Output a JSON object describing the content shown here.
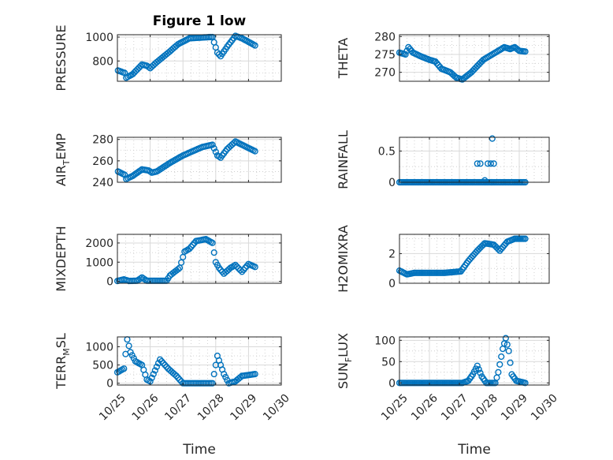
{
  "chart_data": [
    {
      "type": "scatter",
      "id": "pressure",
      "title": "Figure 1 low",
      "ylabel": "PRESSURE",
      "ylim": [
        630,
        1020
      ],
      "yticks": [
        800,
        1000
      ],
      "ytick_labels": [
        "800",
        "1000"
      ],
      "minor_y": [
        700,
        900
      ],
      "xlim": [
        0,
        5
      ],
      "xticks": [
        0,
        1,
        2,
        3,
        4,
        5
      ],
      "xtick_labels": [],
      "xlabel": "",
      "segments": [
        [
          0.02,
          720
        ],
        [
          0.22,
          700
        ],
        [
          0.27,
          660
        ],
        [
          0.47,
          690
        ],
        [
          0.75,
          770
        ],
        [
          0.9,
          760
        ],
        [
          1.0,
          740
        ],
        [
          1.2,
          790
        ],
        [
          1.6,
          880
        ],
        [
          1.85,
          940
        ],
        [
          2.2,
          990
        ],
        [
          2.8,
          1000
        ],
        [
          2.9,
          1000
        ],
        [
          3.05,
          870
        ],
        [
          3.15,
          840
        ],
        [
          3.35,
          920
        ],
        [
          3.6,
          1010
        ],
        [
          3.8,
          990
        ],
        [
          4.0,
          960
        ],
        [
          4.2,
          930
        ]
      ]
    },
    {
      "type": "scatter",
      "id": "theta",
      "title": "",
      "ylabel": "THETA",
      "ylim": [
        267.5,
        280.5
      ],
      "yticks": [
        270,
        275,
        280
      ],
      "ytick_labels": [
        "270",
        "275",
        "280"
      ],
      "minor_y": [
        272.5,
        277.5
      ],
      "xlim": [
        0,
        5
      ],
      "xticks": [
        0,
        1,
        2,
        3,
        4,
        5
      ],
      "xtick_labels": [],
      "xlabel": "",
      "segments": [
        [
          0.0,
          275.5
        ],
        [
          0.2,
          275.0
        ],
        [
          0.3,
          277.0
        ],
        [
          0.45,
          275.5
        ],
        [
          0.7,
          274.5
        ],
        [
          1.0,
          273.5
        ],
        [
          1.2,
          273.0
        ],
        [
          1.4,
          271.0
        ],
        [
          1.7,
          270.0
        ],
        [
          1.9,
          268.5
        ],
        [
          2.1,
          268.0
        ],
        [
          2.4,
          270.0
        ],
        [
          2.8,
          273.5
        ],
        [
          3.2,
          275.5
        ],
        [
          3.5,
          277.0
        ],
        [
          3.7,
          276.5
        ],
        [
          3.85,
          277.0
        ],
        [
          4.0,
          276.0
        ],
        [
          4.2,
          275.8
        ]
      ]
    },
    {
      "type": "scatter",
      "id": "air_temp",
      "title": "",
      "ylabel": "AIR_TEMP",
      "ylim": [
        240,
        282
      ],
      "yticks": [
        240,
        260,
        280
      ],
      "ytick_labels": [
        "240",
        "260",
        "280"
      ],
      "minor_y": [
        250,
        270
      ],
      "xlim": [
        0,
        5
      ],
      "xticks": [
        0,
        1,
        2,
        3,
        4,
        5
      ],
      "xtick_labels": [],
      "xlabel": "",
      "segments": [
        [
          0.02,
          250
        ],
        [
          0.22,
          247
        ],
        [
          0.27,
          243
        ],
        [
          0.47,
          246
        ],
        [
          0.75,
          252
        ],
        [
          0.95,
          251
        ],
        [
          1.05,
          249
        ],
        [
          1.2,
          250
        ],
        [
          1.6,
          258
        ],
        [
          2.0,
          265
        ],
        [
          2.6,
          273
        ],
        [
          2.9,
          275
        ],
        [
          3.05,
          265
        ],
        [
          3.15,
          263
        ],
        [
          3.35,
          271
        ],
        [
          3.6,
          278
        ],
        [
          3.8,
          275
        ],
        [
          4.2,
          269
        ]
      ]
    },
    {
      "type": "scatter",
      "id": "rainfall",
      "title": "",
      "ylabel": "RAINFALL",
      "ylim": [
        0,
        0.72
      ],
      "yticks": [
        0,
        0.5
      ],
      "ytick_labels": [
        "0",
        "0.5"
      ],
      "minor_y": [
        0.25
      ],
      "xlim": [
        0,
        5
      ],
      "xticks": [
        0,
        1,
        2,
        3,
        4,
        5
      ],
      "xtick_labels": [],
      "xlabel": "",
      "segments": [
        [
          0.0,
          0.0
        ],
        [
          3.08,
          0.0
        ],
        [
          3.08,
          0.0
        ],
        [
          4.2,
          0.0
        ]
      ],
      "extra_points": [
        [
          2.6,
          0.3
        ],
        [
          2.7,
          0.3
        ],
        [
          2.95,
          0.3
        ],
        [
          3.05,
          0.3
        ],
        [
          3.15,
          0.3
        ],
        [
          2.85,
          0.03
        ],
        [
          3.1,
          0.7
        ]
      ]
    },
    {
      "type": "scatter",
      "id": "mixdepth",
      "title": "",
      "ylabel": "MIXDEPTH",
      "ylim": [
        -100,
        2450
      ],
      "yticks": [
        0,
        1000,
        2000
      ],
      "ytick_labels": [
        "0",
        "1000",
        "2000"
      ],
      "minor_y": [
        500,
        1500
      ],
      "xlim": [
        0,
        5
      ],
      "xticks": [
        0,
        1,
        2,
        3,
        4,
        5
      ],
      "xtick_labels": [],
      "xlabel": "",
      "segments": [
        [
          0.0,
          20
        ],
        [
          0.2,
          100
        ],
        [
          0.35,
          20
        ],
        [
          0.6,
          30
        ],
        [
          0.75,
          200
        ],
        [
          0.9,
          30
        ],
        [
          1.5,
          30
        ],
        [
          1.6,
          300
        ],
        [
          1.9,
          700
        ],
        [
          2.05,
          1550
        ],
        [
          2.2,
          1700
        ],
        [
          2.4,
          2100
        ],
        [
          2.7,
          2200
        ],
        [
          2.9,
          2000
        ],
        [
          3.0,
          1000
        ],
        [
          3.1,
          700
        ],
        [
          3.25,
          400
        ],
        [
          3.45,
          700
        ],
        [
          3.6,
          850
        ],
        [
          3.8,
          500
        ],
        [
          4.0,
          900
        ],
        [
          4.2,
          750
        ]
      ]
    },
    {
      "type": "scatter",
      "id": "h2omixra",
      "title": "",
      "ylabel": "H2OMIXRA",
      "ylim": [
        0,
        3.3
      ],
      "yticks": [
        0,
        2
      ],
      "ytick_labels": [
        "0",
        "2"
      ],
      "minor_y": [
        1,
        3
      ],
      "xlim": [
        0,
        5
      ],
      "xticks": [
        0,
        1,
        2,
        3,
        4,
        5
      ],
      "xtick_labels": [],
      "xlabel": "",
      "segments": [
        [
          0.0,
          0.85
        ],
        [
          0.25,
          0.6
        ],
        [
          0.5,
          0.7
        ],
        [
          1.0,
          0.7
        ],
        [
          1.5,
          0.7
        ],
        [
          2.05,
          0.8
        ],
        [
          2.3,
          1.5
        ],
        [
          2.6,
          2.2
        ],
        [
          2.85,
          2.7
        ],
        [
          3.15,
          2.6
        ],
        [
          3.35,
          2.2
        ],
        [
          3.6,
          2.8
        ],
        [
          3.85,
          3.0
        ],
        [
          4.2,
          3.0
        ]
      ]
    },
    {
      "type": "scatter",
      "id": "terr_msl",
      "title": "",
      "ylabel": "TERR_MSL",
      "ylim": [
        -50,
        1270
      ],
      "yticks": [
        0,
        500,
        1000
      ],
      "ytick_labels": [
        "0",
        "500",
        "1000"
      ],
      "minor_y": [
        250,
        750
      ],
      "xlim": [
        0,
        5
      ],
      "xticks": [
        0,
        1,
        2,
        3,
        4,
        5
      ],
      "xtick_labels": [
        "10/25",
        "10/26",
        "10/27",
        "10/28",
        "10/29",
        "10/30"
      ],
      "xlabel": "Time",
      "segments": [
        [
          0.0,
          300
        ],
        [
          0.2,
          400
        ],
        [
          0.3,
          1200
        ],
        [
          0.4,
          850
        ],
        [
          0.55,
          600
        ],
        [
          0.75,
          500
        ],
        [
          0.9,
          100
        ],
        [
          1.0,
          50
        ],
        [
          1.15,
          350
        ],
        [
          1.3,
          650
        ],
        [
          1.55,
          400
        ],
        [
          1.8,
          200
        ],
        [
          2.0,
          0
        ],
        [
          2.9,
          0
        ],
        [
          3.05,
          750
        ],
        [
          3.25,
          250
        ],
        [
          3.4,
          0
        ],
        [
          3.6,
          50
        ],
        [
          3.8,
          200
        ],
        [
          4.2,
          250
        ]
      ]
    },
    {
      "type": "scatter",
      "id": "sun_flux",
      "title": "",
      "ylabel": "SUN_FLUX",
      "ylim": [
        -5,
        108
      ],
      "yticks": [
        0,
        50,
        100
      ],
      "ytick_labels": [
        "0",
        "50",
        "100"
      ],
      "minor_y": [
        25,
        75
      ],
      "xlim": [
        0,
        5
      ],
      "xticks": [
        0,
        1,
        2,
        3,
        4,
        5
      ],
      "xtick_labels": [
        "10/25",
        "10/26",
        "10/27",
        "10/28",
        "10/29",
        "10/30"
      ],
      "xlabel": "Time",
      "segments": [
        [
          0.0,
          0
        ],
        [
          2.1,
          0
        ],
        [
          2.3,
          5
        ],
        [
          2.45,
          20
        ],
        [
          2.6,
          40
        ],
        [
          2.75,
          15
        ],
        [
          2.9,
          0
        ],
        [
          3.2,
          0
        ],
        [
          3.3,
          25
        ],
        [
          3.45,
          80
        ],
        [
          3.55,
          105
        ],
        [
          3.65,
          75
        ],
        [
          3.75,
          20
        ],
        [
          3.9,
          5
        ],
        [
          4.2,
          0
        ]
      ]
    }
  ]
}
